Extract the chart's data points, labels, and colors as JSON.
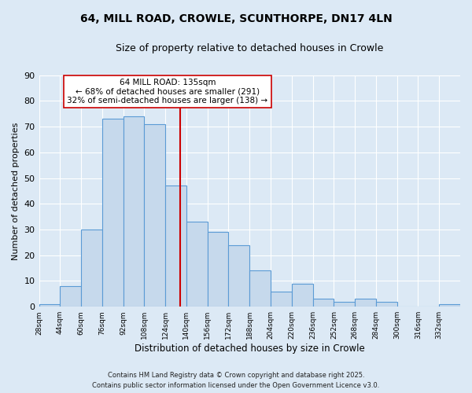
{
  "title": "64, MILL ROAD, CROWLE, SCUNTHORPE, DN17 4LN",
  "subtitle": "Size of property relative to detached houses in Crowle",
  "xlabel": "Distribution of detached houses by size in Crowle",
  "ylabel": "Number of detached properties",
  "bar_edges": [
    28,
    44,
    60,
    76,
    92,
    108,
    124,
    140,
    156,
    172,
    188,
    204,
    220,
    236,
    252,
    268,
    284,
    300,
    316,
    332,
    348
  ],
  "bar_heights": [
    1,
    8,
    30,
    73,
    74,
    71,
    47,
    33,
    29,
    24,
    14,
    6,
    9,
    3,
    2,
    3,
    2,
    0,
    0,
    1
  ],
  "bar_color": "#c6d9ec",
  "bar_edgecolor": "#5b9bd5",
  "vline_x": 135,
  "vline_color": "#cc0000",
  "ylim": [
    0,
    90
  ],
  "yticks": [
    0,
    10,
    20,
    30,
    40,
    50,
    60,
    70,
    80,
    90
  ],
  "annotation_title": "64 MILL ROAD: 135sqm",
  "annotation_line1": "← 68% of detached houses are smaller (291)",
  "annotation_line2": "32% of semi-detached houses are larger (138) →",
  "annotation_box_facecolor": "#ffffff",
  "annotation_box_edgecolor": "#cc0000",
  "footer_line1": "Contains HM Land Registry data © Crown copyright and database right 2025.",
  "footer_line2": "Contains public sector information licensed under the Open Government Licence v3.0.",
  "fig_facecolor": "#dce9f5",
  "plot_facecolor": "#dce9f5",
  "grid_color": "#ffffff",
  "title_fontsize": 10,
  "subtitle_fontsize": 9,
  "xlabel_fontsize": 8.5,
  "ylabel_fontsize": 8,
  "ytick_fontsize": 8,
  "xtick_fontsize": 6.5,
  "annotation_fontsize": 7.5,
  "footer_fontsize": 6
}
